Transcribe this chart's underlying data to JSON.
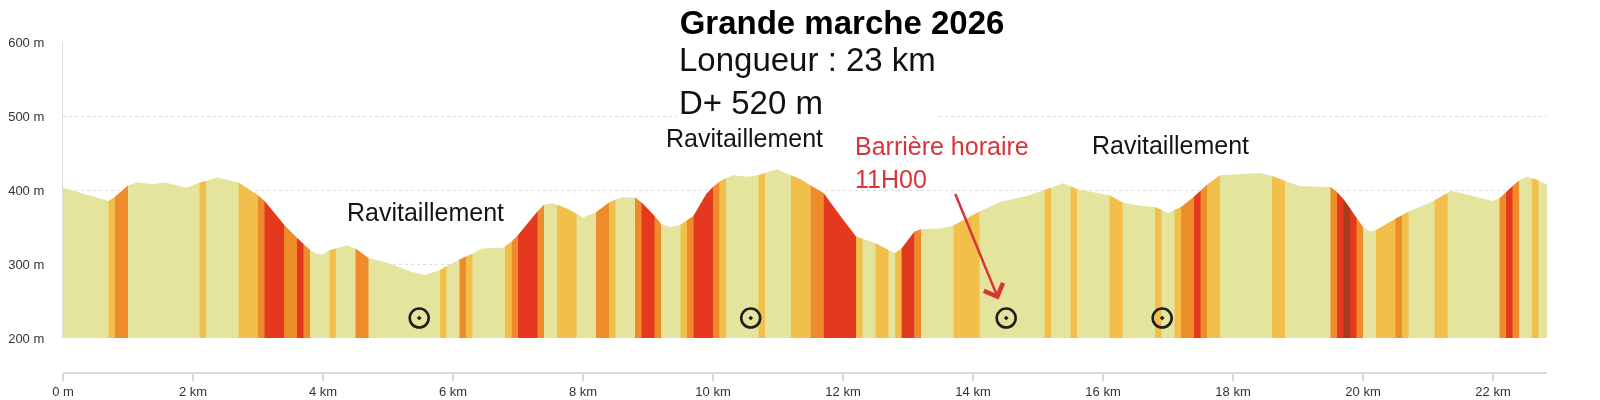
{
  "chart_data": {
    "type": "area",
    "title": "Grande marche 2026",
    "subtitle": "Longueur : 23 km\nD+ 520 m",
    "annotations": [
      "Ravitaillement",
      "Ravitaillement",
      {
        "text": "Barrière horaire\n11H00",
        "x": 14.51,
        "y": 227
      },
      "Ravitaillement"
    ],
    "xlim": [
      0,
      22.83
    ],
    "xticks": [
      {
        "value": 0,
        "label": "0 m"
      },
      {
        "value": 2,
        "label": "2 km"
      },
      {
        "value": 4,
        "label": "4 km"
      },
      {
        "value": 6,
        "label": "6 km"
      },
      {
        "value": 8,
        "label": "8 km"
      },
      {
        "value": 10,
        "label": "10 km"
      },
      {
        "value": 12,
        "label": "12 km"
      },
      {
        "value": 14,
        "label": "14 km"
      },
      {
        "value": 16,
        "label": "16 km"
      },
      {
        "value": 18,
        "label": "18 km"
      },
      {
        "value": 20,
        "label": "20 km"
      },
      {
        "value": 22,
        "label": "22 km"
      }
    ],
    "ylim": [
      200,
      600
    ],
    "yticks": [
      {
        "value": 200,
        "label": "200 m"
      },
      {
        "value": 300,
        "label": "300 m"
      },
      {
        "value": 400,
        "label": "400 m"
      },
      {
        "value": 500,
        "label": "500 m"
      },
      {
        "value": 600,
        "label": "600 m"
      }
    ],
    "grid": "y",
    "series": [
      {
        "color": "#e4e49c",
        "x": [
          0,
          0.7,
          0.8,
          1.0,
          1.13,
          1.39,
          1.57,
          1.9,
          2.1,
          2.2,
          2.36,
          2.7,
          3.0,
          3.1,
          3.4,
          3.5,
          3.6,
          3.7,
          3.8,
          3.9,
          4.0,
          4.1,
          4.2,
          4.36,
          4.5,
          4.7,
          4.98,
          5.34,
          5.57,
          5.8,
          5.9,
          6.1,
          6.2,
          6.3,
          6.44,
          6.77,
          6.8,
          6.9,
          7.0,
          7.3,
          7.4,
          7.54,
          7.6,
          7.75,
          7.9,
          8.0,
          8.2,
          8.4,
          8.5,
          8.6,
          8.8,
          8.9,
          9.1,
          9.2,
          9.34,
          9.5,
          9.6,
          9.7,
          9.9,
          10.0,
          10.1,
          10.2,
          10.31,
          10.52,
          10.7,
          10.8,
          10.98,
          11.2,
          11.34,
          11.5,
          11.7,
          11.95,
          12.2,
          12.3,
          12.4,
          12.5,
          12.7,
          12.75,
          12.8,
          12.9,
          13.1,
          13.2,
          13.49,
          13.7,
          14.1,
          14.42,
          14.83,
          15.1,
          15.2,
          15.39,
          15.5,
          15.6,
          16.1,
          16.3,
          16.55,
          16.8,
          16.9,
          17.0,
          17.1,
          17.2,
          17.4,
          17.5,
          17.6,
          17.8,
          18.42,
          18.6,
          18.8,
          19.03,
          19.5,
          19.6,
          19.7,
          19.8,
          19.9,
          20.0,
          20.11,
          20.2,
          20.5,
          20.6,
          20.7,
          20.9,
          21.1,
          21.3,
          21.36,
          21.65,
          21.98,
          22.1,
          22.2,
          22.3,
          22.4,
          22.52,
          22.6,
          22.7,
          22.83
        ],
        "values": [
          403,
          385,
          391,
          406,
          410,
          408,
          410,
          403,
          410,
          412,
          417,
          410,
          393,
          385,
          353,
          344,
          335,
          327,
          319,
          314,
          313,
          319,
          321,
          325,
          321,
          308,
          302,
          290,
          285,
          292,
          297,
          306,
          310,
          314,
          321,
          322,
          324,
          330,
          339,
          371,
          380,
          382,
          380,
          375,
          368,
          363,
          370,
          383,
          387,
          390,
          390,
          383,
          365,
          354,
          350,
          353,
          359,
          365,
          395,
          404,
          411,
          416,
          420,
          418,
          420,
          423,
          428,
          420,
          415,
          406,
          396,
          366,
          337,
          334,
          331,
          328,
          319,
          317,
          315,
          321,
          344,
          347,
          348,
          352,
          371,
          384,
          392,
          400,
          403,
          409,
          405,
          401,
          393,
          383,
          379,
          377,
          373,
          369,
          373,
          377,
          391,
          399,
          407,
          420,
          423,
          419,
          412,
          405,
          404,
          397,
          387,
          375,
          362,
          350,
          344,
          346,
          361,
          366,
          371,
          378,
          386,
          396,
          399,
          393,
          385,
          389,
          397,
          405,
          413,
          418,
          416,
          413,
          407
        ]
      },
      {
        "color": "#f2c04a",
        "x": [
          0.7,
          0.8,
          1.5,
          2.1,
          2.2,
          2.4,
          2.7,
          3.0,
          3.5,
          4.1,
          4.2,
          5.0,
          5.8,
          5.9,
          6.0,
          6.2,
          6.3,
          6.5,
          6.8,
          6.9,
          7.2,
          7.6,
          7.75,
          7.9,
          8.1,
          8.4,
          8.5,
          9.0,
          9.5,
          9.6,
          9.8,
          10.1,
          10.2,
          10.5,
          10.7,
          10.8,
          11.0,
          11.2,
          11.34,
          11.5,
          12.0,
          12.2,
          12.3,
          12.4,
          12.5,
          12.7,
          12.75,
          12.8,
          12.9,
          13.4,
          13.7,
          14.1,
          14.6,
          15.1,
          15.2,
          15.35,
          15.5,
          15.6,
          15.8,
          16.1,
          16.3,
          16.55,
          16.8,
          16.9,
          17.0,
          17.1,
          17.2,
          17.4,
          17.6,
          17.8,
          18.2,
          18.6,
          18.8,
          19.5,
          20.2,
          20.5,
          20.6,
          20.7,
          20.9,
          21.1,
          21.3,
          22.0,
          22.6,
          22.7
        ],
        "values": [
          385,
          391,
          null,
          410,
          412,
          null,
          410,
          393,
          null,
          319,
          321,
          null,
          292,
          297,
          null,
          310,
          314,
          null,
          324,
          330,
          null,
          380,
          375,
          368,
          null,
          383,
          387,
          null,
          353,
          359,
          null,
          411,
          416,
          null,
          420,
          423,
          null,
          420,
          415,
          406,
          null,
          337,
          334,
          null,
          328,
          319,
          null,
          315,
          321,
          null,
          352,
          371,
          null,
          400,
          403,
          null,
          405,
          401,
          null,
          393,
          383,
          null,
          377,
          373,
          null,
          373,
          377,
          null,
          407,
          420,
          null,
          419,
          412,
          null,
          346,
          361,
          366,
          371,
          null,
          386,
          396,
          null,
          416,
          413
        ]
      },
      {
        "color": "#ee8b2b",
        "x": [
          0.8,
          1.0,
          2.0,
          3.0,
          3.1,
          3.4,
          3.5,
          3.6,
          3.7,
          3.8,
          4.2,
          4.5,
          4.7,
          5.5,
          6.1,
          6.2,
          6.5,
          6.9,
          7.0,
          7.3,
          7.4,
          8.0,
          8.2,
          8.4,
          8.6,
          8.8,
          8.9,
          9.1,
          9.2,
          9.4,
          9.6,
          9.7,
          9.9,
          10.0,
          10.1,
          11.0,
          11.5,
          11.7,
          12.5,
          13.1,
          13.2,
          15.0,
          17.2,
          17.4,
          17.5,
          17.6,
          18.5,
          19.5,
          19.6,
          19.7,
          19.8,
          19.9,
          20.0,
          20.3,
          20.5,
          20.6,
          21.5,
          22.1,
          22.2,
          22.3,
          22.4
        ],
        "values": [
          391,
          406,
          null,
          393,
          385,
          353,
          344,
          335,
          327,
          319,
          null,
          321,
          308,
          null,
          306,
          310,
          null,
          330,
          339,
          371,
          380,
          null,
          370,
          383,
          null,
          390,
          383,
          365,
          354,
          null,
          359,
          365,
          395,
          404,
          411,
          null,
          406,
          396,
          null,
          344,
          347,
          null,
          377,
          391,
          399,
          407,
          null,
          404,
          397,
          387,
          375,
          362,
          350,
          null,
          361,
          366,
          null,
          389,
          397,
          405,
          413
        ]
      },
      {
        "color": "#e4391f",
        "x": [
          3.1,
          3.4,
          3.5,
          3.6,
          3.7,
          5.0,
          7.0,
          7.3,
          8.0,
          8.9,
          9.1,
          9.4,
          9.7,
          9.9,
          10.0,
          11.0,
          11.7,
          11.95,
          12.2,
          12.5,
          12.9,
          13.1,
          15.0,
          17.4,
          17.5,
          18.5,
          19.6,
          19.7,
          19.8,
          19.9,
          21.0,
          22.2,
          22.3
        ],
        "values": [
          385,
          353,
          null,
          335,
          327,
          null,
          339,
          371,
          null,
          383,
          365,
          null,
          365,
          395,
          404,
          null,
          396,
          366,
          337,
          null,
          321,
          344,
          null,
          391,
          399,
          null,
          397,
          387,
          375,
          362,
          null,
          397,
          405
        ]
      },
      {
        "color": "#a33f1f",
        "x": [
          19.7,
          19.8
        ],
        "values": [
          387,
          375
        ]
      },
      {
        "type": "scatter",
        "marker": "circle",
        "color": "#1e1e1e",
        "x": [
          5.48,
          10.58,
          14.51,
          16.91
        ],
        "values": [
          227,
          227,
          227,
          227
        ]
      }
    ]
  }
}
